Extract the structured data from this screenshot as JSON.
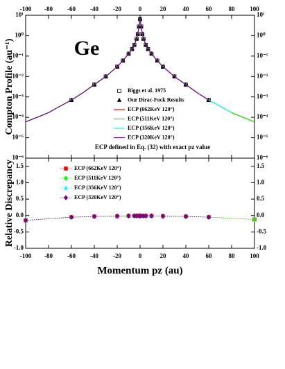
{
  "chart_data": [
    {
      "type": "line",
      "title": "Ge",
      "ylabel": "Compton Profile (au⁻¹)",
      "annotation": "ECP defined in Eq. (32) with exact pz value",
      "log_y": true,
      "xaxis": "top",
      "xlim": [
        -100,
        100
      ],
      "xticks": [
        -100,
        -80,
        -60,
        -40,
        -20,
        0,
        20,
        40,
        60,
        80,
        100
      ],
      "ylim": [
        1e-06,
        10
      ],
      "yticks": [
        {
          "value": 10,
          "label": "10¹"
        },
        {
          "value": 1,
          "label": "10⁰"
        },
        {
          "value": 0.1,
          "label": "10⁻¹"
        },
        {
          "value": 0.01,
          "label": "10⁻²"
        },
        {
          "value": 0.001,
          "label": "10⁻³"
        },
        {
          "value": 0.0001,
          "label": "10⁻⁴"
        },
        {
          "value": 1e-05,
          "label": "10⁻⁵"
        },
        {
          "value": 1e-06,
          "label": "10⁻⁶"
        }
      ],
      "series": [
        {
          "name": "Biggs et al. 1975",
          "color": "#000000",
          "style": "marker",
          "marker": "square",
          "filled": false,
          "x": [
            -60,
            -40,
            -30,
            -20,
            -15,
            -10,
            -7,
            -5,
            -3,
            -2,
            -1,
            0,
            1,
            2,
            3,
            5,
            7,
            10,
            15,
            20,
            30,
            40,
            60
          ],
          "values": [
            0.0007,
            0.004,
            0.01,
            0.03,
            0.06,
            0.13,
            0.22,
            0.35,
            0.7,
            1.2,
            2.8,
            6.5,
            2.8,
            1.2,
            0.7,
            0.35,
            0.22,
            0.13,
            0.06,
            0.03,
            0.01,
            0.004,
            0.0007
          ]
        },
        {
          "name": "Our Dirac-Fock Results",
          "color": "#000000",
          "style": "marker",
          "marker": "triangle",
          "filled": true,
          "x": [
            -60,
            -40,
            -30,
            -20,
            -15,
            -10,
            -7,
            -5,
            -3,
            -2,
            -1,
            0,
            1,
            2,
            3,
            5,
            7,
            10,
            15,
            20,
            30,
            40,
            60
          ],
          "values": [
            0.0007,
            0.004,
            0.01,
            0.03,
            0.06,
            0.13,
            0.22,
            0.35,
            0.7,
            1.2,
            2.8,
            6.5,
            2.8,
            1.2,
            0.7,
            0.35,
            0.22,
            0.13,
            0.06,
            0.03,
            0.01,
            0.004,
            0.0007
          ]
        },
        {
          "name": "ECP (662KeV 120°)",
          "color": "#ff0000",
          "style": "line",
          "x": [
            -100,
            -90,
            -80,
            -70,
            -60,
            -50,
            -40,
            -30,
            -20,
            -15,
            -10,
            -7,
            -5,
            -3,
            -2,
            -1,
            0,
            1,
            2,
            3,
            5,
            7,
            10,
            15,
            20,
            30,
            40,
            50,
            60,
            70,
            80,
            90,
            100
          ],
          "values": [
            6e-05,
            0.0001,
            0.00017,
            0.00035,
            0.0007,
            0.0016,
            0.004,
            0.01,
            0.03,
            0.06,
            0.13,
            0.22,
            0.35,
            0.7,
            1.2,
            2.8,
            6.5,
            2.8,
            1.2,
            0.7,
            0.35,
            0.22,
            0.13,
            0.06,
            0.03,
            0.01,
            0.004,
            0.0016,
            0.0007,
            0.00035,
            0.00017,
            0.0001,
            6e-05
          ]
        },
        {
          "name": "ECP (511KeV 120°)",
          "color": "#00ff00",
          "style": "line",
          "x": [
            -100,
            -90,
            -80,
            -70,
            -60,
            -50,
            -40,
            -30,
            -20,
            -15,
            -10,
            -7,
            -5,
            -3,
            -2,
            -1,
            0,
            1,
            2,
            3,
            5,
            7,
            10,
            15,
            20,
            30,
            40,
            50,
            60,
            70,
            80,
            90,
            100
          ],
          "values": [
            6e-05,
            0.0001,
            0.00017,
            0.00035,
            0.0007,
            0.0016,
            0.004,
            0.01,
            0.03,
            0.06,
            0.13,
            0.22,
            0.35,
            0.7,
            1.2,
            2.8,
            6.5,
            2.8,
            1.2,
            0.7,
            0.35,
            0.22,
            0.13,
            0.06,
            0.03,
            0.01,
            0.004,
            0.0016,
            0.0007,
            0.00035,
            0.00017,
            0.0001,
            6e-05
          ]
        },
        {
          "name": "ECP (356KeV 120°)",
          "color": "#00ffff",
          "style": "line",
          "x": [
            -100,
            -90,
            -80,
            -70,
            -60,
            -50,
            -40,
            -30,
            -20,
            -15,
            -10,
            -7,
            -5,
            -3,
            -2,
            -1,
            0,
            1,
            2,
            3,
            5,
            7,
            10,
            15,
            20,
            30,
            40,
            50,
            60,
            70,
            80,
            90,
            100
          ],
          "values": [
            6e-05,
            0.0001,
            0.00017,
            0.00035,
            0.0007,
            0.0016,
            0.004,
            0.01,
            0.03,
            0.06,
            0.13,
            0.22,
            0.35,
            0.7,
            1.2,
            2.8,
            6.5,
            2.8,
            1.2,
            0.7,
            0.35,
            0.22,
            0.13,
            0.06,
            0.03,
            0.01,
            0.004,
            0.0016,
            0.0007,
            0.00035,
            0.00017,
            null,
            null
          ]
        },
        {
          "name": "ECP (320KeV 120°)",
          "color": "#800080",
          "style": "line",
          "x": [
            -100,
            -90,
            -80,
            -70,
            -60,
            -50,
            -40,
            -30,
            -20,
            -15,
            -10,
            -7,
            -5,
            -3,
            -2,
            -1,
            0,
            1,
            2,
            3,
            5,
            7,
            10,
            15,
            20,
            30,
            40,
            50,
            60,
            70,
            80,
            90,
            100
          ],
          "values": [
            6e-05,
            0.0001,
            0.00017,
            0.00035,
            0.0007,
            0.0016,
            0.004,
            0.01,
            0.03,
            0.06,
            0.13,
            0.22,
            0.35,
            0.7,
            1.2,
            2.8,
            6.5,
            2.8,
            1.2,
            0.7,
            0.35,
            0.22,
            0.13,
            0.06,
            0.03,
            0.01,
            0.004,
            0.0016,
            0.0007,
            null,
            null,
            null,
            null
          ]
        }
      ]
    },
    {
      "type": "line",
      "ylabel": "Relative Discrepancy",
      "xlabel": "Momentum pz (au)",
      "xaxis": "bottom",
      "xlim": [
        -100,
        100
      ],
      "xticks": [
        -100,
        -80,
        -60,
        -40,
        -20,
        0,
        20,
        40,
        60,
        80,
        100
      ],
      "ylim": [
        -1,
        1.75
      ],
      "yticks": [
        {
          "value": -1,
          "label": "-1.0"
        },
        {
          "value": -0.5,
          "label": "-0.5"
        },
        {
          "value": 0,
          "label": "0.0"
        },
        0.5,
        {
          "value": 1,
          "label": "1.0"
        },
        1.5
      ],
      "series": [
        {
          "name": "ECP (662KeV 120°)",
          "color": "#ff0000",
          "style": "dotted-marker",
          "marker": "square",
          "filled": true,
          "x": [
            -100,
            -60,
            -40,
            -20,
            -10,
            -5,
            -3,
            -1,
            0,
            1,
            3,
            5,
            10,
            20,
            40,
            60,
            100
          ],
          "values": [
            -0.15,
            -0.05,
            -0.03,
            -0.02,
            -0.01,
            -0.01,
            -0.01,
            -0.01,
            -0.01,
            -0.01,
            -0.01,
            -0.01,
            -0.01,
            -0.02,
            -0.03,
            -0.05,
            -0.12
          ]
        },
        {
          "name": "ECP (511KeV 120°)",
          "color": "#00ff00",
          "style": "dotted-marker",
          "marker": "diamond",
          "filled": true,
          "x": [
            -100,
            -60,
            -40,
            -20,
            -10,
            -5,
            -3,
            -1,
            0,
            1,
            3,
            5,
            10,
            20,
            40,
            60,
            100
          ],
          "values": [
            -0.15,
            -0.05,
            -0.03,
            -0.02,
            -0.01,
            -0.01,
            -0.01,
            -0.01,
            -0.01,
            -0.01,
            -0.01,
            -0.01,
            -0.01,
            -0.02,
            -0.03,
            -0.05,
            -0.12
          ]
        },
        {
          "name": "ECP (356KeV 120°)",
          "color": "#00ffff",
          "style": "dotted-marker",
          "marker": "triangle",
          "filled": true,
          "x": [
            -100,
            -60,
            -40,
            -20,
            -10,
            -5,
            -3,
            -1,
            0,
            1,
            3,
            5,
            10,
            20,
            40,
            60,
            100
          ],
          "values": [
            -0.15,
            -0.05,
            -0.03,
            -0.02,
            -0.01,
            -0.01,
            -0.01,
            -0.01,
            -0.01,
            -0.01,
            -0.01,
            -0.01,
            -0.01,
            -0.02,
            -0.03,
            -0.05,
            null
          ]
        },
        {
          "name": "ECP (320KeV 120°)",
          "color": "#800080",
          "style": "dotted-marker",
          "marker": "diamond",
          "filled": true,
          "x": [
            -100,
            -60,
            -40,
            -20,
            -10,
            -5,
            -3,
            -1,
            0,
            1,
            3,
            5,
            10,
            20,
            40,
            60,
            100
          ],
          "values": [
            -0.15,
            -0.05,
            -0.03,
            -0.02,
            -0.01,
            -0.01,
            -0.01,
            -0.01,
            -0.01,
            -0.01,
            -0.01,
            -0.01,
            -0.01,
            -0.02,
            -0.03,
            -0.05,
            null
          ]
        }
      ]
    }
  ]
}
